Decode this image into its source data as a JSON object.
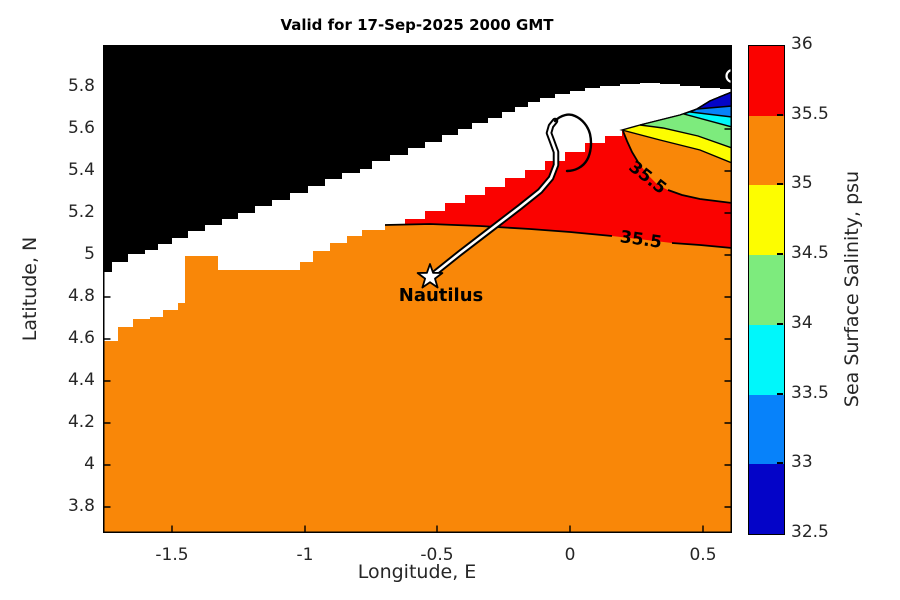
{
  "title": "Valid for 17-Sep-2025 2000 GMT",
  "axes": {
    "xlabel": "Longitude, E",
    "ylabel": "Latitude, N",
    "xticks": [
      "-1.5",
      "-1",
      "-0.5",
      "0",
      "0.5"
    ],
    "yticks": [
      "5.8",
      "5.6",
      "5.4",
      "5.2",
      "5",
      "4.8",
      "4.6",
      "4.4",
      "4.2",
      "4",
      "3.8"
    ]
  },
  "colorbar": {
    "label": "Sea Surface Salinity, psu",
    "tick_labels": [
      "36",
      "35.5",
      "35",
      "34.5",
      "34",
      "33.5",
      "33",
      "32.5"
    ],
    "bands": [
      {
        "range": "35.5-36",
        "color": "#fa0200"
      },
      {
        "range": "35-35.5",
        "color": "#f98708"
      },
      {
        "range": "34.5-35",
        "color": "#fdfd00"
      },
      {
        "range": "34-34.5",
        "color": "#7deb7d"
      },
      {
        "range": "33.5-34",
        "color": "#00f7fb"
      },
      {
        "range": "33-33.5",
        "color": "#0782fa"
      },
      {
        "range": "32.5-33",
        "color": "#0404c8"
      }
    ]
  },
  "annotations": {
    "ship_label": "Nautilus",
    "contour_label_upper": "35.5",
    "contour_label_lower": "35.5"
  },
  "colors": {
    "land": "#000000",
    "no_data": "#ffffff",
    "contour_line": "#000000",
    "track_core": "#ffffff",
    "track_edge": "#000000"
  },
  "chart_data": {
    "type": "heatmap",
    "subtype": "filled-contour-map",
    "title": "Valid for 17-Sep-2025 2000 GMT",
    "xlabel": "Longitude, E",
    "ylabel": "Latitude, N",
    "xlim": [
      -1.76,
      0.61
    ],
    "ylim": [
      3.68,
      6.0
    ],
    "xticks": [
      -1.5,
      -1,
      -0.5,
      0,
      0.5
    ],
    "yticks": [
      5.8,
      5.6,
      5.4,
      5.2,
      5.0,
      4.8,
      4.6,
      4.4,
      4.2,
      4.0,
      3.8
    ],
    "colorbar_levels_psu": [
      32.5,
      33,
      33.5,
      34,
      34.5,
      35,
      35.5,
      36
    ],
    "colorbar_colors": [
      "#0404c8",
      "#0782fa",
      "#00f7fb",
      "#7deb7d",
      "#fdfd00",
      "#f98708",
      "#fa0200"
    ],
    "legend_position": "right",
    "grid": false,
    "regions": [
      {
        "name": "land",
        "color": "black",
        "location": "upper-left coastal mass spanning from west edge (lat ~4.9) rising northeast along the top to the east edge (lat ~5.78)"
      },
      {
        "name": "no-data band",
        "color": "white",
        "location": "diagonal band hugging the coast, ~0.15-0.35 deg wide, from west edge (lat 4.6-4.9) to northeast corner"
      },
      {
        "name": "salinity 35-35.5",
        "color": "orange",
        "location": "dominant offshore field covering most of the map south of the coastal band"
      },
      {
        "name": "salinity 35.5-36",
        "color": "red",
        "location": "band between lon ~-0.44 and east edge, lat ~5.05-5.45, pinching out toward the ship track"
      },
      {
        "name": "salinity 35-35.5 pocket",
        "color": "orange",
        "location": "pocket inside the red band near east edge, lat ~5.2-5.5"
      },
      {
        "name": "low-salinity coastal stripes 32.5-35",
        "colors": [
          "yellow",
          "green",
          "cyan",
          "blue",
          "dark blue"
        ],
        "location": "thin wedges in the northeast corner between the white band and the orange pocket, lat ~5.4-5.78"
      }
    ],
    "contour_labels": [
      {
        "value": 35.5,
        "lon": 0.29,
        "lat": 5.37,
        "rotation_deg": 38
      },
      {
        "value": 35.5,
        "lon": 0.27,
        "lat": 5.08,
        "rotation_deg": 8
      }
    ],
    "ship_marker": {
      "label": "Nautilus",
      "symbol": "white pentagram",
      "lon": -0.53,
      "lat": 4.9
    },
    "ship_track_lonlat": [
      [
        -0.53,
        4.9
      ],
      [
        -0.41,
        5.01
      ],
      [
        -0.3,
        5.12
      ],
      [
        -0.19,
        5.23
      ],
      [
        -0.11,
        5.3
      ],
      [
        -0.07,
        5.37
      ],
      [
        -0.05,
        5.43
      ],
      [
        -0.05,
        5.49
      ],
      [
        -0.07,
        5.54
      ],
      [
        -0.08,
        5.58
      ],
      [
        -0.06,
        5.64
      ],
      [
        0.02,
        5.66
      ],
      [
        0.07,
        5.58
      ],
      [
        0.08,
        5.5
      ],
      [
        0.04,
        5.42
      ],
      [
        -0.02,
        5.4
      ]
    ],
    "extra_marker": {
      "symbol": "white ring, clipped at east edge",
      "lon": 0.61,
      "lat": 5.85
    }
  }
}
